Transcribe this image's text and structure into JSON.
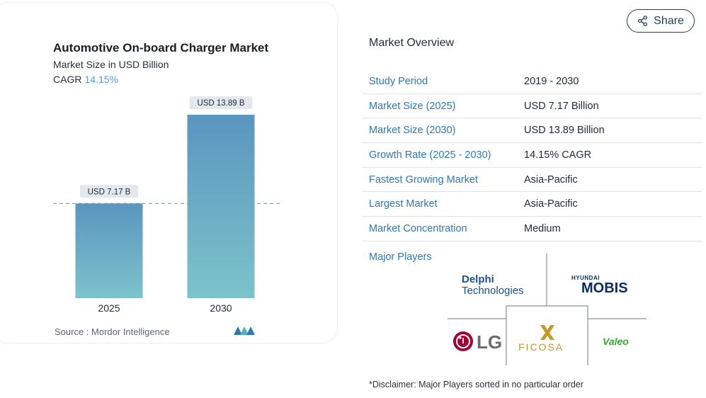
{
  "chart_data": {
    "type": "bar",
    "title": "Automotive On-board Charger Market",
    "subtitle": "Market Size in USD Billion",
    "cagr_label": "CAGR",
    "cagr_value": "14.15%",
    "categories": [
      "2025",
      "2030"
    ],
    "values": [
      7.17,
      13.89
    ],
    "data_labels": [
      "USD 7.17 B",
      "USD 13.89 B"
    ],
    "bar_color_top": "#5b95bf",
    "bar_color_bottom": "#7cc3cb",
    "reference_line": "dashed at 2025 value",
    "source": "Source :  Mordor Intelligence"
  },
  "share": {
    "label": "Share",
    "icon": "share-icon"
  },
  "overview": {
    "title": "Market Overview",
    "rows": [
      {
        "key": "Study Period",
        "value": "2019 - 2030"
      },
      {
        "key": "Market Size (2025)",
        "value": "USD 7.17 Billion"
      },
      {
        "key": "Market Size (2030)",
        "value": "USD 13.89 Billion"
      },
      {
        "key": "Growth Rate (2025 - 2030)",
        "value": "14.15% CAGR"
      },
      {
        "key": "Fastest Growing Market",
        "value": "Asia-Pacific"
      },
      {
        "key": "Largest Market",
        "value": "Asia-Pacific"
      },
      {
        "key": "Market Concentration",
        "value": "Medium"
      }
    ],
    "major_players_label": "Major Players",
    "players": {
      "delphi_line1": "Delphi",
      "delphi_line2": "Technologies",
      "hyundai_top": "HYUNDAI",
      "mobis": "MOBIS",
      "lg": "LG",
      "ficosa": "FICOSA",
      "valeo": "Valeo"
    },
    "disclaimer": "*Disclaimer: Major Players sorted in no particular order"
  }
}
